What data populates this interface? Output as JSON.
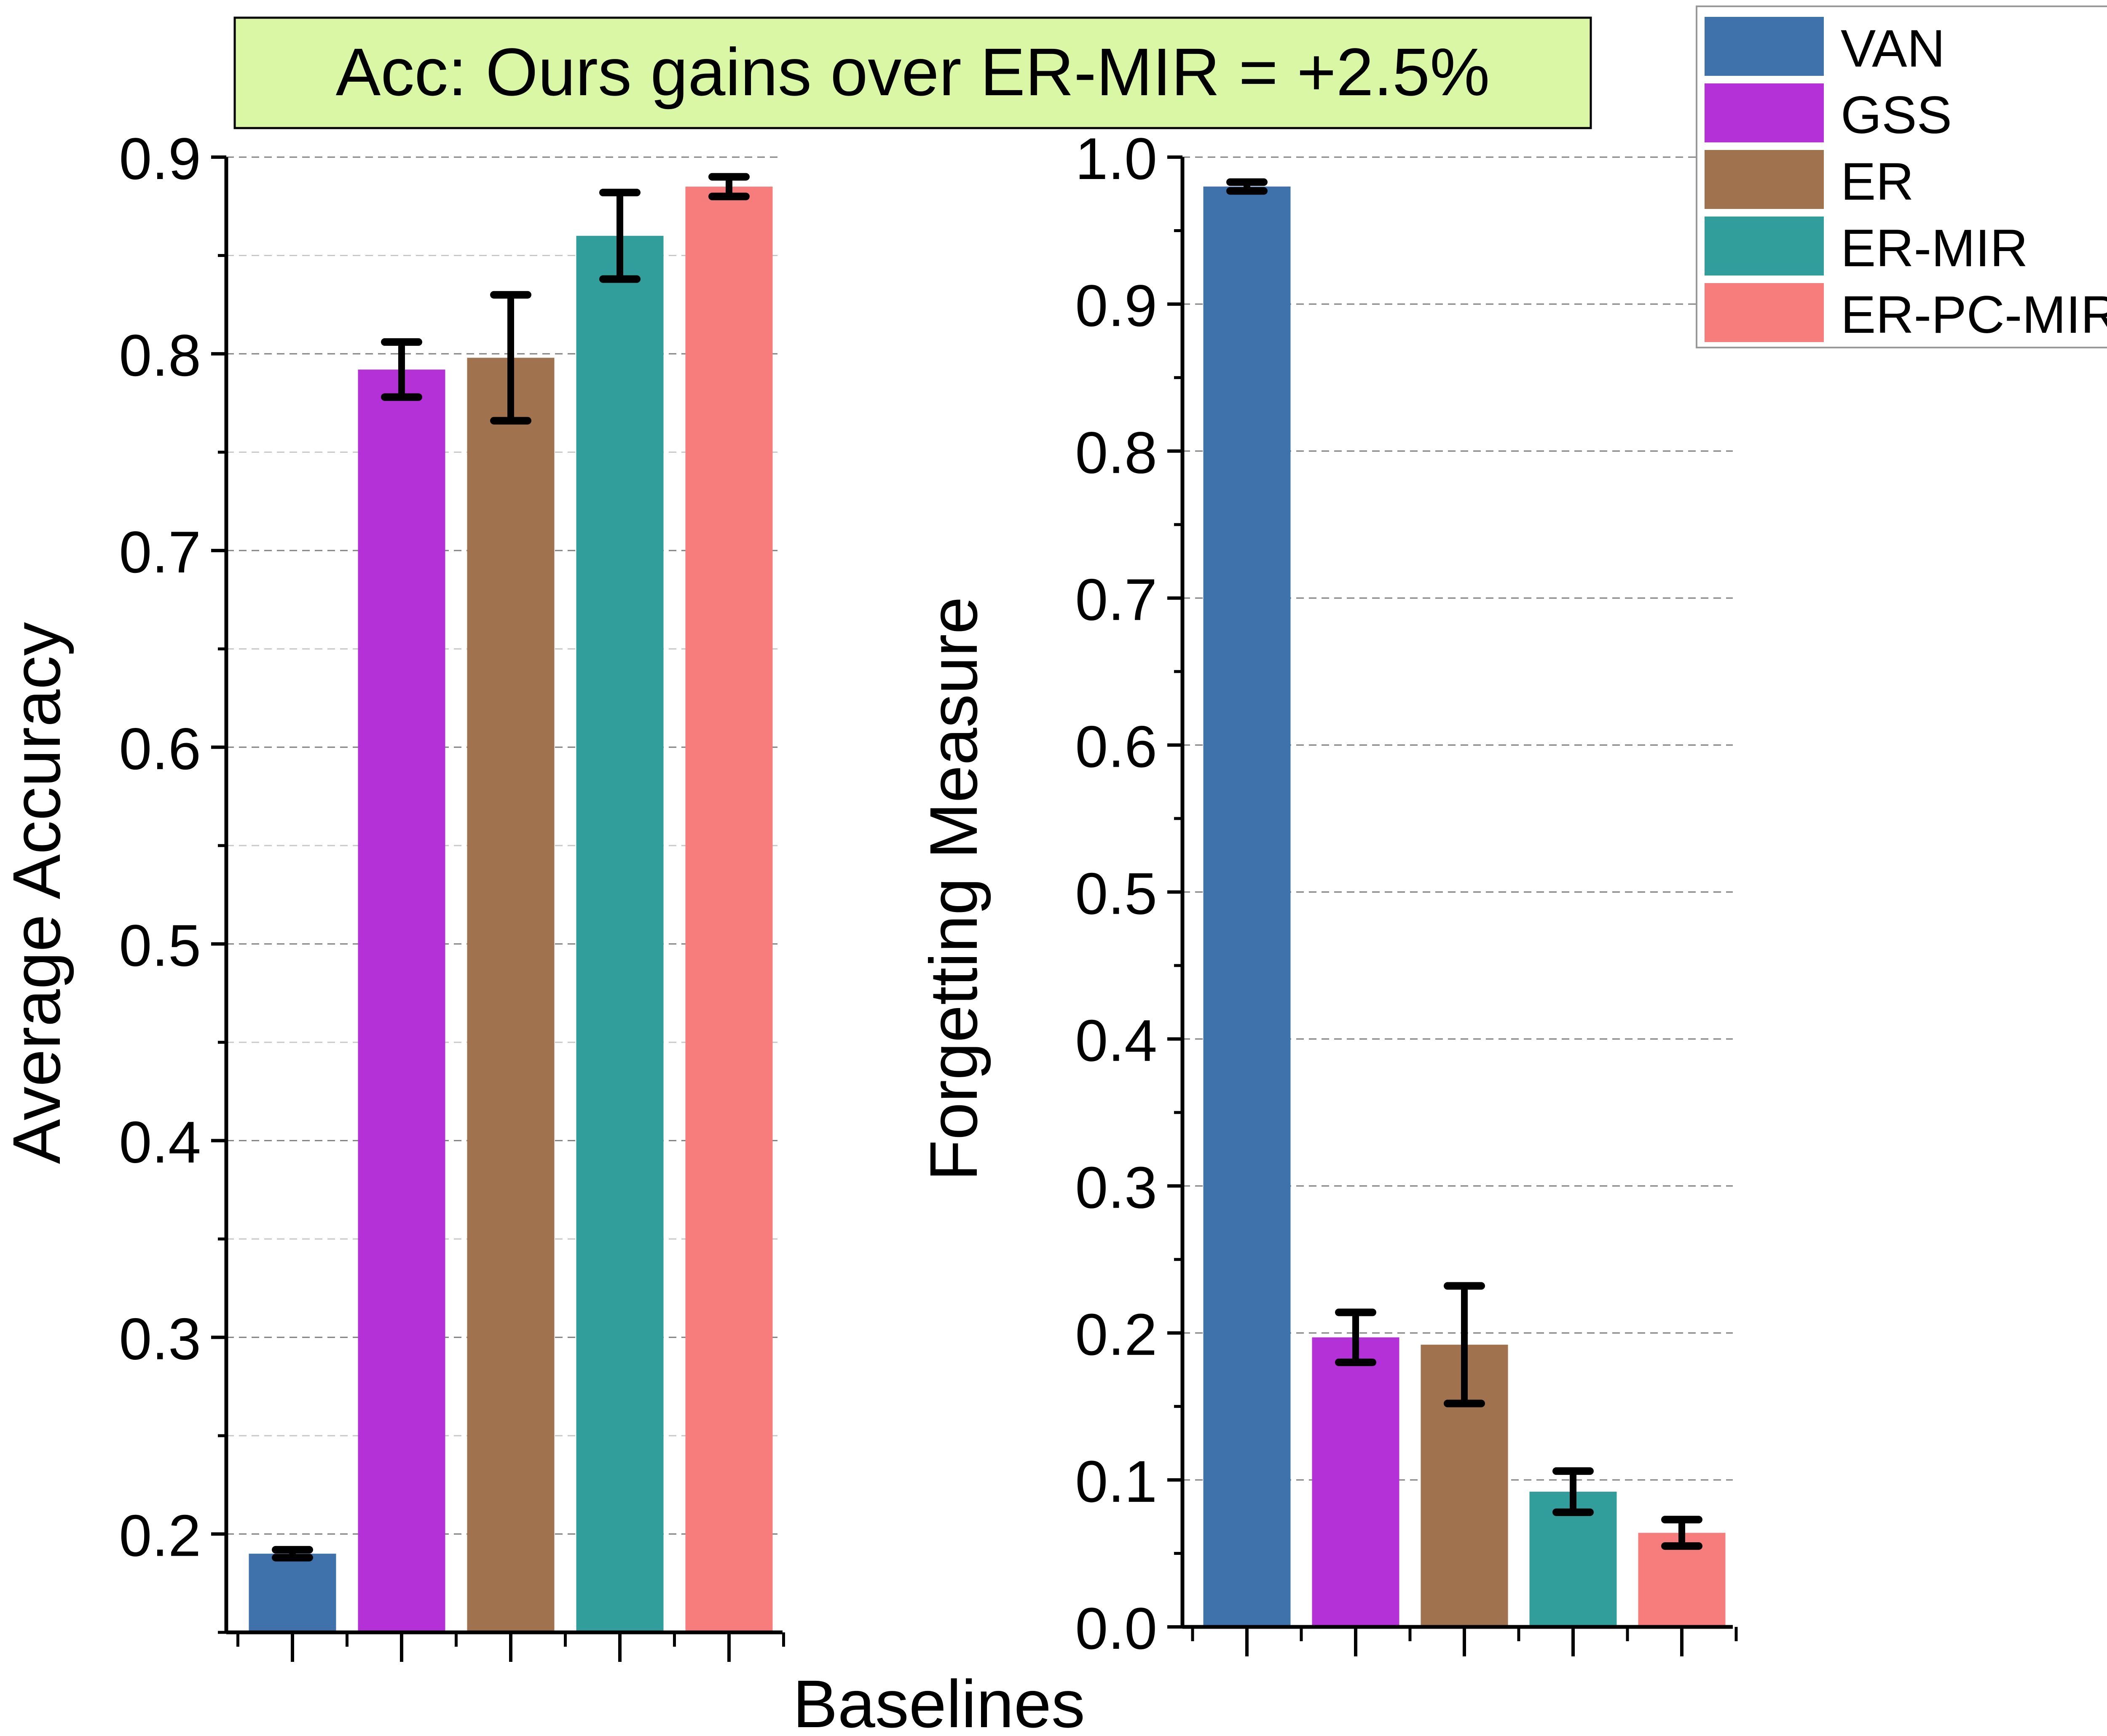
{
  "annotation": "Acc: Ours gains over ER-MIR = +2.5%",
  "shared_xlabel": "Baselines",
  "legend": {
    "entries": [
      {
        "name": "VAN",
        "color": "#3f72aa"
      },
      {
        "name": "GSS",
        "color": "#b331d6"
      },
      {
        "name": "ER",
        "color": "#a0734e"
      },
      {
        "name": "ER-MIR",
        "color": "#319e9c"
      },
      {
        "name": "ER-PC-MIR",
        "color": "#f77d7c"
      }
    ]
  },
  "colors": {
    "annotation_bg": "#daf7a6",
    "grid": "#808080",
    "axis": "#000000"
  },
  "chart_data": [
    {
      "type": "bar",
      "title": "",
      "xlabel": "Baselines",
      "ylabel": "Average Accuracy",
      "categories": [
        "VAN",
        "GSS",
        "ER",
        "ER-MIR",
        "ER-PC-MIR"
      ],
      "values": [
        0.19,
        0.792,
        0.798,
        0.86,
        0.885
      ],
      "errors": [
        0.002,
        0.014,
        0.032,
        0.022,
        0.005
      ],
      "ylim": [
        0.15,
        0.9
      ],
      "yticks": [
        "0.2",
        "0.3",
        "0.4",
        "0.5",
        "0.6",
        "0.7",
        "0.8",
        "0.9"
      ],
      "grid": true
    },
    {
      "type": "bar",
      "title": "",
      "xlabel": "Baselines",
      "ylabel": "Forgetting Measure",
      "categories": [
        "VAN",
        "GSS",
        "ER",
        "ER-MIR",
        "ER-PC-MIR"
      ],
      "values": [
        0.98,
        0.197,
        0.192,
        0.092,
        0.064
      ],
      "errors": [
        0.003,
        0.017,
        0.04,
        0.014,
        0.009
      ],
      "ylim": [
        0.0,
        1.0
      ],
      "yticks": [
        "0.0",
        "0.1",
        "0.2",
        "0.3",
        "0.4",
        "0.5",
        "0.6",
        "0.7",
        "0.8",
        "0.9",
        "1.0"
      ],
      "grid": true
    }
  ]
}
